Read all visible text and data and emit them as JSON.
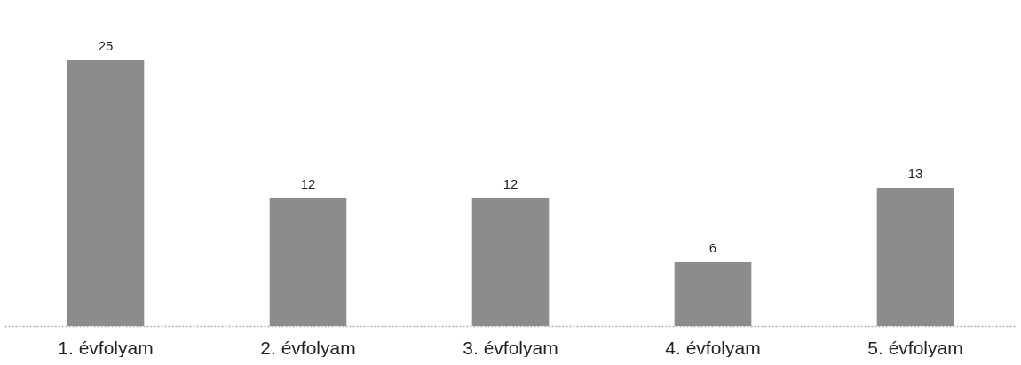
{
  "chart_data": {
    "type": "bar",
    "categories": [
      "1. évfolyam",
      "2. évfolyam",
      "3. évfolyam",
      "4. évfolyam",
      "5. évfolyam"
    ],
    "values": [
      25,
      12,
      12,
      6,
      13
    ],
    "color": "#8c8c8c",
    "data_labels": true
  }
}
